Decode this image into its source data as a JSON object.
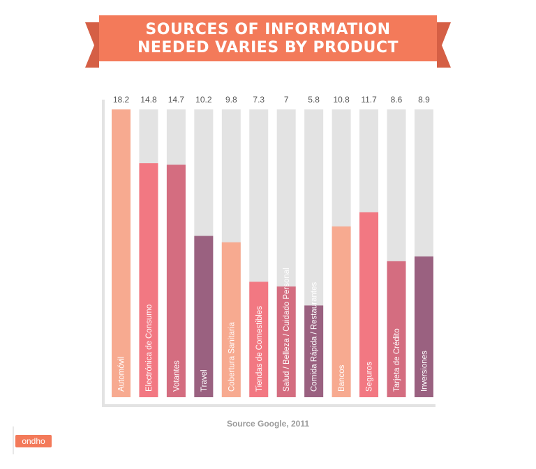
{
  "header": {
    "title_line1": "SOURCES OF INFORMATION",
    "title_line2": "NEEDED VARIES BY PRODUCT"
  },
  "source": "Source Google, 2011",
  "logo": {
    "text": "ondho"
  },
  "colors": {
    "banner": "#f37a5a",
    "banner_dark": "#d55f45",
    "track": "#e3e3e3",
    "axis": "#e3e3e3",
    "value_text": "#555555",
    "label_text": "#ffffff"
  },
  "chart_data": {
    "type": "bar",
    "title": "SOURCES OF INFORMATION NEEDED VARIES BY PRODUCT",
    "ylim": [
      0,
      18.2
    ],
    "categories": [
      "Automóvil",
      "Electrónica de Consumo",
      "Votantes",
      "Travel",
      "Cobertura Sanitaria",
      "Tiendas de Comestibles",
      "Salud / Belleza / Cuidado Personal",
      "Comida Rápida / Restaurantes",
      "Bancos",
      "Seguros",
      "Tarjeta de Crédito",
      "Inversiones"
    ],
    "values": [
      18.2,
      14.8,
      14.7,
      10.2,
      9.8,
      7.3,
      7,
      5.8,
      10.8,
      11.7,
      8.6,
      8.9
    ],
    "value_labels": [
      "18.2",
      "14.8",
      "14.7",
      "10.2",
      "9.8",
      "7.3",
      "7",
      "5.8",
      "10.8",
      "11.7",
      "8.6",
      "8.9"
    ],
    "bar_colors": [
      "#f7aa90",
      "#f27882",
      "#d46d80",
      "#9a6180",
      "#f7aa90",
      "#f27882",
      "#d46d80",
      "#9a6180",
      "#f7aa90",
      "#f27882",
      "#d46d80",
      "#9a6180"
    ]
  }
}
